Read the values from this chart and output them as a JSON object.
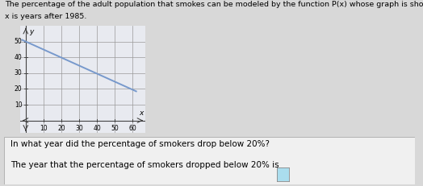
{
  "title_line1": "The percentage of the adult population that smokes can be modeled by the function P(x) whose graph is shown below. The input",
  "title_line2": "x is years after 1985.",
  "question_text": "In what year did the percentage of smokers drop below 20%?",
  "answer_text": "The year that the percentage of smokers dropped below 20% is",
  "xlabel": "x",
  "ylabel": "y",
  "xlim": [
    -3,
    67
  ],
  "ylim": [
    -8,
    60
  ],
  "xticks": [
    10,
    20,
    30,
    40,
    50,
    60
  ],
  "yticks": [
    10,
    20,
    30,
    40,
    50
  ],
  "line_x": [
    -2,
    62
  ],
  "line_y": [
    51.2,
    18.5
  ],
  "line_color": "#7799cc",
  "line_width": 1.4,
  "grid_color": "#999999",
  "axis_color": "#444444",
  "bg_color": "#d8d8d8",
  "plot_bg_color": "#e8eaf0",
  "title_fontsize": 6.8,
  "question_fontsize": 7.5,
  "answer_fontsize": 7.5,
  "tick_fontsize": 5.5,
  "label_fontsize": 6.5,
  "question_box_color": "#f0f0f0",
  "answer_box_color": "#aaddee"
}
